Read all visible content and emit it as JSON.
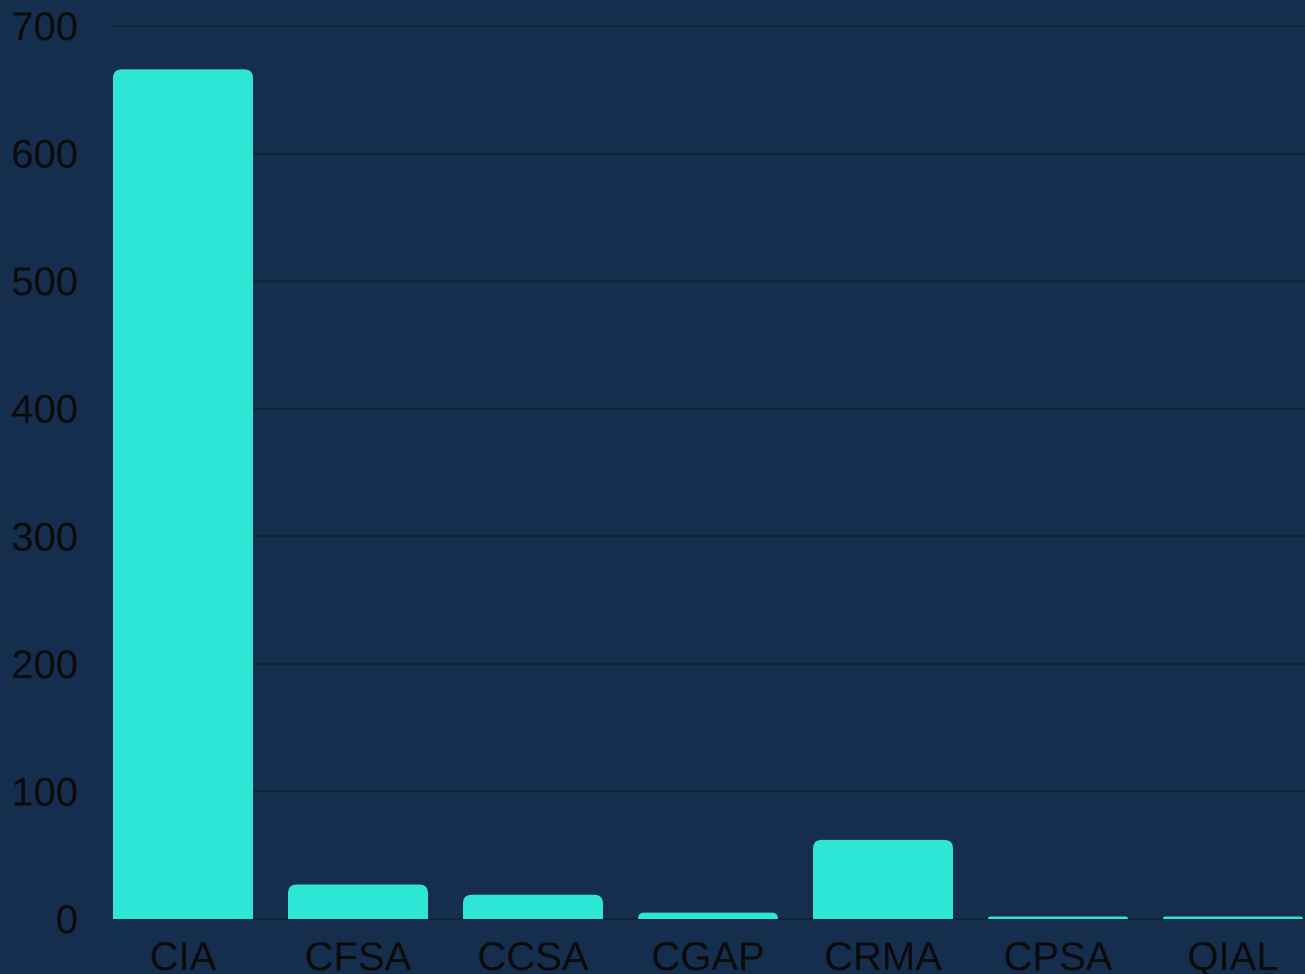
{
  "chart_data": {
    "type": "bar",
    "categories": [
      "CIA",
      "CFSA",
      "CCSA",
      "CGAP",
      "CRMA",
      "CPSA",
      "QIAL"
    ],
    "values": [
      666,
      27,
      19,
      5,
      62,
      2,
      2
    ],
    "ylim": [
      0,
      700
    ],
    "yticks": [
      0,
      100,
      200,
      300,
      400,
      500,
      600,
      700
    ],
    "grid": true,
    "legend": "none",
    "colors": {
      "background": "#152e4d",
      "bar": "#2ee6d6",
      "grid": "#0f2339",
      "text": "#0b0b0b"
    }
  }
}
